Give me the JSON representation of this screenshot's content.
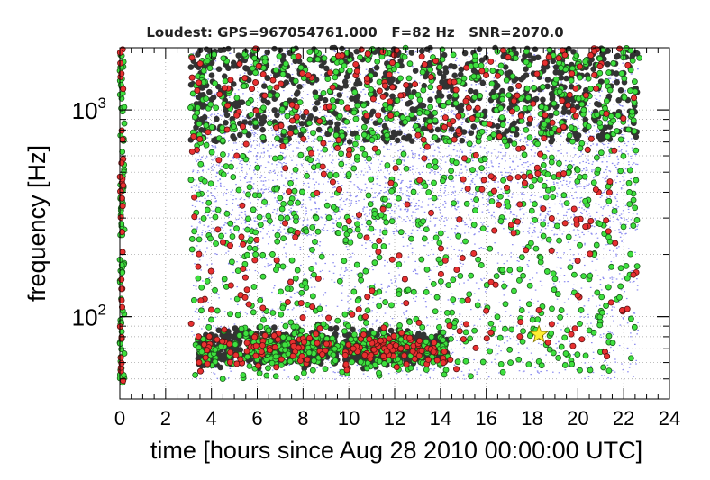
{
  "chart_data": {
    "type": "scatter",
    "title": "Loudest: GPS=967054761.000   F=82 Hz   SNR=2070.0",
    "xlabel": "time [hours since Aug 28 2010 00:00:00 UTC]",
    "ylabel": "frequency [Hz]",
    "xlim": [
      0,
      24
    ],
    "ylim": [
      40,
      2000
    ],
    "y_scale": "log",
    "grid": true,
    "x_ticks": [
      "0",
      "2",
      "4",
      "6",
      "8",
      "10",
      "12",
      "14",
      "16",
      "18",
      "20",
      "22",
      "24"
    ],
    "y_ticks": [
      {
        "base": "10",
        "exp": "2",
        "value": 100
      },
      {
        "base": "10",
        "exp": "3",
        "value": 1000
      }
    ],
    "colors": {
      "low_snr": "#8c8cf0",
      "mid_snr": "#3ee03e",
      "high_snr": "#e83030",
      "loudest_marker": "#ffee33",
      "dense_cluster": "#333333"
    },
    "loudest": {
      "x": 18.3,
      "y": 82
    },
    "series": [
      {
        "class": "low_snr",
        "count_visual": "dense",
        "coverage_x": [
          3.1,
          22.6
        ],
        "coverage_y": [
          50,
          2000
        ]
      },
      {
        "class": "mid_snr",
        "coverage_x": [
          0,
          22.6
        ],
        "coverage_y": [
          45,
          2000
        ]
      },
      {
        "class": "high_snr",
        "coverage_x": [
          0,
          22.6
        ],
        "coverage_y": [
          45,
          2000
        ]
      }
    ],
    "annotation_clusters": [
      {
        "x_range": [
          3.4,
          9.5
        ],
        "y_range": [
          50,
          100
        ]
      },
      {
        "x_range": [
          9.8,
          14.3
        ],
        "y_range": [
          52,
          95
        ]
      },
      {
        "x_range": [
          3.1,
          22.6
        ],
        "y_range": [
          700,
          2000
        ]
      }
    ]
  }
}
